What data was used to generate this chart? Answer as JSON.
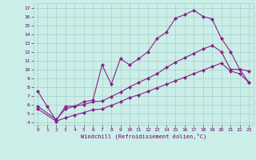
{
  "xlabel": "Windchill (Refroidissement éolien,°C)",
  "background_color": "#cceee8",
  "grid_color": "#aad4ce",
  "line_color": "#882288",
  "xlim": [
    -0.5,
    23.5
  ],
  "ylim": [
    3.7,
    17.5
  ],
  "yticks": [
    4,
    5,
    6,
    7,
    8,
    9,
    10,
    11,
    12,
    13,
    14,
    15,
    16,
    17
  ],
  "xticks": [
    0,
    1,
    2,
    3,
    4,
    5,
    6,
    7,
    8,
    9,
    10,
    11,
    12,
    13,
    14,
    15,
    16,
    17,
    18,
    19,
    20,
    21,
    22,
    23
  ],
  "series1_x": [
    0,
    1,
    2,
    3,
    4,
    5,
    6,
    7,
    8,
    9,
    10,
    11,
    12,
    13,
    14,
    15,
    16,
    17,
    18,
    19,
    20,
    21,
    22,
    23
  ],
  "series1_y": [
    7.5,
    5.8,
    4.2,
    5.8,
    5.8,
    6.3,
    6.5,
    10.5,
    8.3,
    11.2,
    10.5,
    11.2,
    12.0,
    13.5,
    14.2,
    15.8,
    16.2,
    16.7,
    16.0,
    15.7,
    13.5,
    12.0,
    10.0,
    9.8
  ],
  "series2_x": [
    0,
    2,
    3,
    4,
    5,
    6,
    7,
    8,
    9,
    10,
    11,
    12,
    13,
    14,
    15,
    16,
    17,
    18,
    19,
    20,
    21,
    22,
    23
  ],
  "series2_y": [
    5.8,
    4.3,
    5.5,
    5.8,
    6.0,
    6.3,
    6.4,
    6.9,
    7.4,
    8.0,
    8.5,
    9.0,
    9.5,
    10.2,
    10.8,
    11.3,
    11.8,
    12.3,
    12.7,
    12.0,
    10.0,
    10.0,
    8.5
  ],
  "series3_x": [
    0,
    2,
    3,
    4,
    5,
    6,
    7,
    8,
    9,
    10,
    11,
    12,
    13,
    14,
    15,
    16,
    17,
    18,
    19,
    20,
    21,
    22,
    23
  ],
  "series3_y": [
    5.5,
    4.1,
    4.5,
    4.8,
    5.1,
    5.4,
    5.5,
    5.9,
    6.3,
    6.8,
    7.1,
    7.5,
    7.9,
    8.3,
    8.7,
    9.1,
    9.5,
    9.9,
    10.3,
    10.7,
    9.8,
    9.5,
    8.5
  ]
}
